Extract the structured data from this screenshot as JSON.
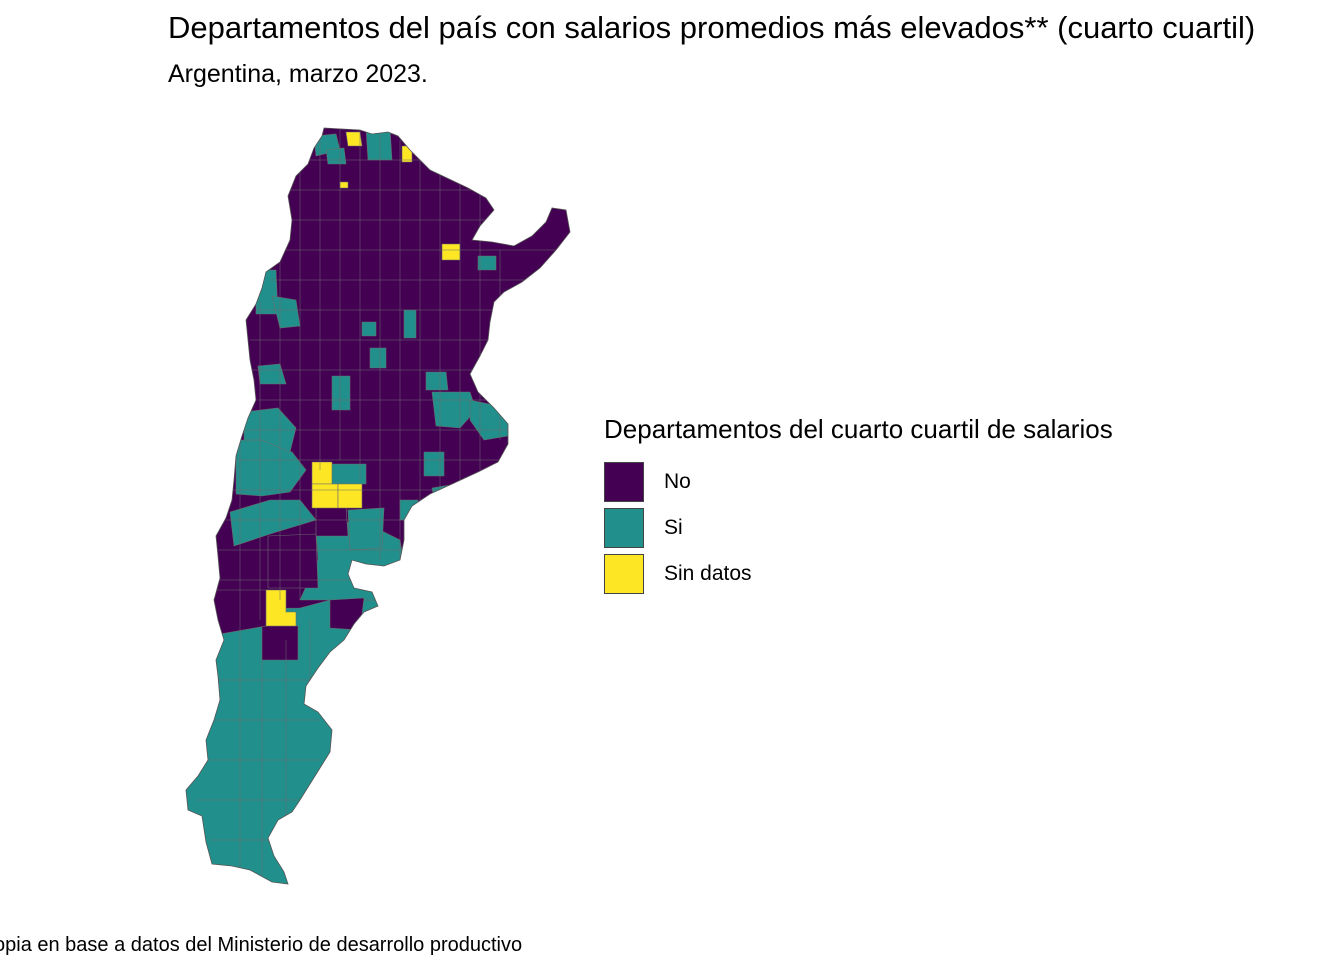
{
  "title": "Departamentos del país con salarios promedios más elevados** (cuarto cuartil)",
  "subtitle": "Argentina, marzo 2023.",
  "caption": "opia en base a datos del Ministerio de desarrollo productivo",
  "legend": {
    "title": "Departamentos del cuarto cuartil de salarios",
    "items": [
      {
        "label": "No",
        "color": "#440154"
      },
      {
        "label": "Si",
        "color": "#21908C"
      },
      {
        "label": "Sin datos",
        "color": "#FDE725"
      }
    ]
  },
  "colors": {
    "no": "#440154",
    "si": "#21908C",
    "sin_datos": "#FDE725",
    "border": "#6b6b6b"
  }
}
